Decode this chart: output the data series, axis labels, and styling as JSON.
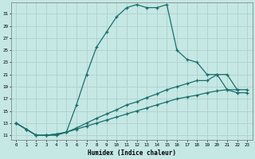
{
  "xlabel": "Humidex (Indice chaleur)",
  "background_color": "#c5e8e5",
  "grid_color": "#b0d0cc",
  "line_color": "#1a6e6a",
  "x_ticks": [
    0,
    1,
    2,
    3,
    4,
    5,
    6,
    7,
    8,
    9,
    10,
    11,
    12,
    13,
    14,
    15,
    16,
    17,
    18,
    19,
    20,
    21,
    22,
    23
  ],
  "y_ticks": [
    11,
    13,
    15,
    17,
    19,
    21,
    23,
    25,
    27,
    29,
    31
  ],
  "ylim": [
    10.2,
    32.8
  ],
  "xlim": [
    -0.5,
    23.5
  ],
  "curve1_x": [
    0,
    1,
    2,
    3,
    4,
    5,
    6,
    7,
    8,
    9,
    10,
    11,
    12,
    13,
    14,
    15,
    16,
    17,
    18,
    19,
    20,
    21,
    22,
    23
  ],
  "curve1_y": [
    13.0,
    12.0,
    11.0,
    11.0,
    11.0,
    11.5,
    16.0,
    21.0,
    25.5,
    28.0,
    30.5,
    32.0,
    32.5,
    32.0,
    32.0,
    32.5,
    25.0,
    23.5,
    23.0,
    21.0,
    21.0,
    18.5,
    18.5,
    null
  ],
  "curve2_x": [
    0,
    1,
    2,
    3,
    4,
    5,
    6,
    7,
    8,
    9,
    10,
    11,
    12,
    13,
    14,
    15,
    16,
    17,
    18,
    19,
    20,
    21,
    22,
    23
  ],
  "curve2_y": [
    13.0,
    12.0,
    11.0,
    11.0,
    11.2,
    11.5,
    12.0,
    12.5,
    13.0,
    13.5,
    14.0,
    14.5,
    15.0,
    15.5,
    16.0,
    16.5,
    17.0,
    17.3,
    17.6,
    18.0,
    18.3,
    18.5,
    18.0,
    18.0
  ],
  "curve3_x": [
    0,
    1,
    2,
    3,
    4,
    5,
    6,
    7,
    8,
    9,
    10,
    11,
    12,
    13,
    14,
    15,
    16,
    17,
    18,
    19,
    20,
    21,
    22,
    23
  ],
  "curve3_y": [
    13.0,
    12.0,
    11.0,
    11.0,
    11.2,
    11.5,
    12.2,
    13.0,
    13.8,
    14.5,
    15.2,
    16.0,
    16.5,
    17.2,
    17.8,
    18.5,
    19.0,
    19.5,
    20.0,
    20.0,
    21.0,
    21.0,
    18.5,
    18.5
  ]
}
